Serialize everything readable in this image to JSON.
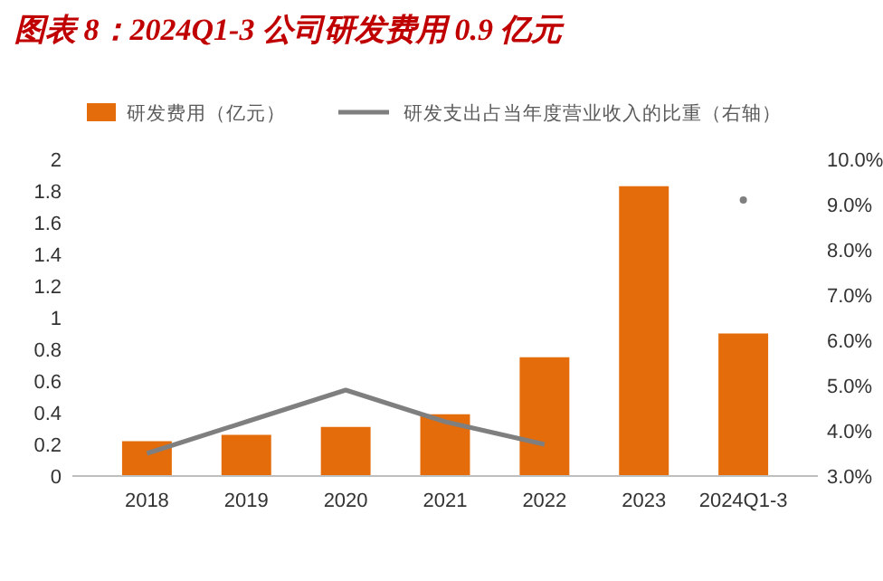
{
  "chart_data": {
    "type": "bar",
    "title": "图表 8：2024Q1-3 公司研发费用 0.9 亿元",
    "categories": [
      "2018",
      "2019",
      "2020",
      "2021",
      "2022",
      "2023",
      "2024Q1-3"
    ],
    "series": [
      {
        "name": "研发费用（亿元）",
        "color": "#e46c0a",
        "values": [
          0.22,
          0.26,
          0.31,
          0.39,
          0.75,
          1.83,
          0.9
        ]
      },
      {
        "name": "研发支出占当年度营业收入的比重（右轴）",
        "type": "line",
        "axis": "y2",
        "color": "#7f7f7f",
        "values": [
          3.5,
          4.2,
          4.9,
          4.2,
          3.7,
          null,
          9.1
        ]
      }
    ],
    "ylim": [
      0,
      2
    ],
    "yticks": [
      0,
      0.2,
      0.4,
      0.6,
      0.8,
      1,
      1.2,
      1.4,
      1.6,
      1.8,
      2
    ],
    "y2lim": [
      3,
      10
    ],
    "y2ticks": [
      {
        "value": 3,
        "label": "3.0%"
      },
      {
        "value": 4,
        "label": "4.0%"
      },
      {
        "value": 5,
        "label": "5.0%"
      },
      {
        "value": 6,
        "label": "6.0%"
      },
      {
        "value": 7,
        "label": "7.0%"
      },
      {
        "value": 8,
        "label": "8.0%"
      },
      {
        "value": 9,
        "label": "9.0%"
      },
      {
        "value": 10,
        "label": "10.0%"
      }
    ],
    "legend": "top",
    "grid": false,
    "marker": "none",
    "line_style": "solid"
  }
}
